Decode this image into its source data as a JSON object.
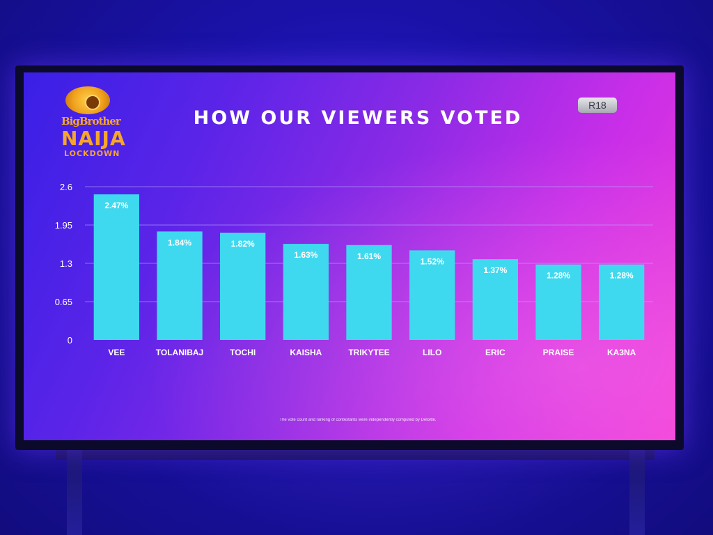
{
  "logo": {
    "line1": "BigBrother",
    "line2": "NAIJA",
    "line3": "LOCKDOWN"
  },
  "title": "HOW OUR VIEWERS VOTED",
  "rating_badge": "R18",
  "footnote": "The vote count and ranking of contestants were independently computed by Deloitte.",
  "colors": {
    "bar": "#3fd9ef",
    "gridline": "#b9a7ff",
    "text": "#ffffff"
  },
  "chart_data": {
    "type": "bar",
    "title": "HOW OUR VIEWERS VOTED",
    "xlabel": "",
    "ylabel": "",
    "ylim": [
      0,
      2.6
    ],
    "yticks": [
      "0",
      "0.65",
      "1.3",
      "1.95",
      "2.6"
    ],
    "ytick_values": [
      0,
      0.65,
      1.3,
      1.95,
      2.6
    ],
    "grid": true,
    "categories": [
      "VEE",
      "TOLANIBAJ",
      "TOCHI",
      "KAISHA",
      "TRIKYTEE",
      "LILO",
      "ERIC",
      "PRAISE",
      "KA3NA"
    ],
    "values": [
      2.47,
      1.84,
      1.82,
      1.63,
      1.61,
      1.52,
      1.37,
      1.28,
      1.28
    ],
    "data_labels": [
      "2.47%",
      "1.84%",
      "1.82%",
      "1.63%",
      "1.61%",
      "1.52%",
      "1.37%",
      "1.28%",
      "1.28%"
    ]
  }
}
